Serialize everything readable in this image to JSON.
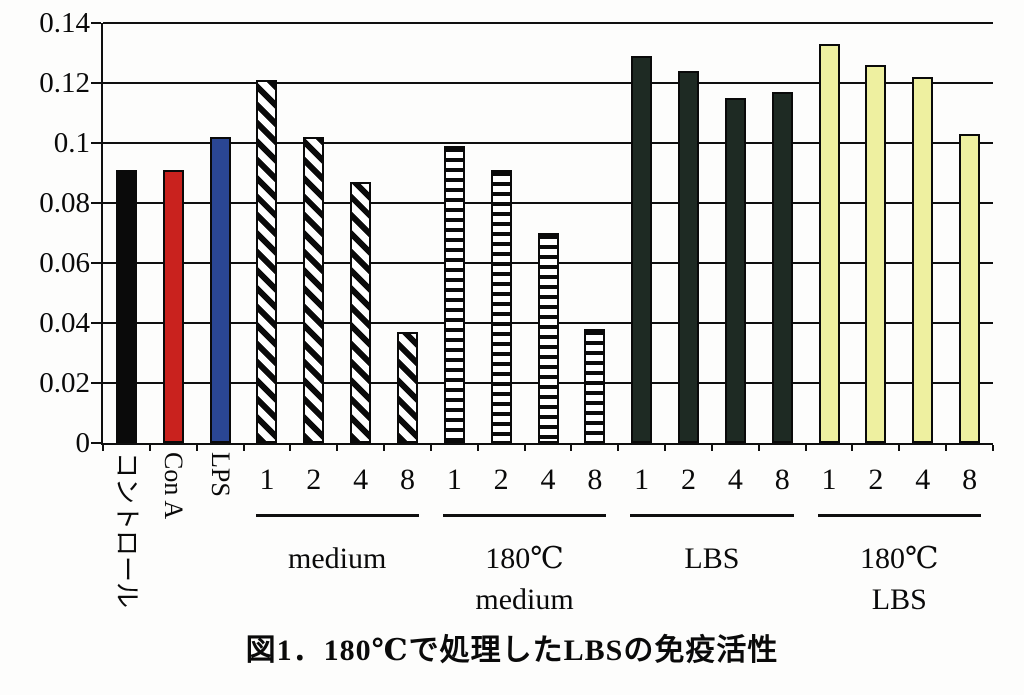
{
  "chart_data": {
    "type": "bar",
    "title": "図1．180℃で処理したLBSの免疫活性",
    "xlabel": "",
    "ylabel": "",
    "ylim": [
      0,
      0.14
    ],
    "grid": true,
    "legend": false,
    "yticks": [
      {
        "label": "0",
        "value": 0
      },
      {
        "label": "0.02",
        "value": 0.02
      },
      {
        "label": "0.04",
        "value": 0.04
      },
      {
        "label": "0.06",
        "value": 0.06
      },
      {
        "label": "0.08",
        "value": 0.08
      },
      {
        "label": "0.1",
        "value": 0.1
      },
      {
        "label": "0.12",
        "value": 0.12
      },
      {
        "label": "0.14",
        "value": 0.14
      }
    ],
    "bars": [
      {
        "label": "コントロール",
        "value": 0.091,
        "style": "solid",
        "color": "#0a0a0a",
        "label_rotation": "vertical"
      },
      {
        "label": "Con A",
        "value": 0.091,
        "style": "solid",
        "color": "#c9221e",
        "label_rotation": "vertical"
      },
      {
        "label": "LPS",
        "value": 0.102,
        "style": "solid",
        "color": "#2a4693",
        "label_rotation": "vertical"
      },
      {
        "label": "1",
        "value": 0.121,
        "style": "diag",
        "group": "medium"
      },
      {
        "label": "2",
        "value": 0.102,
        "style": "diag",
        "group": "medium"
      },
      {
        "label": "4",
        "value": 0.087,
        "style": "diag",
        "group": "medium"
      },
      {
        "label": "8",
        "value": 0.037,
        "style": "diag",
        "group": "medium"
      },
      {
        "label": "1",
        "value": 0.099,
        "style": "hstripe",
        "group": "180℃ medium"
      },
      {
        "label": "2",
        "value": 0.091,
        "style": "hstripe",
        "group": "180℃ medium"
      },
      {
        "label": "4",
        "value": 0.07,
        "style": "hstripe",
        "group": "180℃ medium"
      },
      {
        "label": "8",
        "value": 0.038,
        "style": "hstripe",
        "group": "180℃ medium"
      },
      {
        "label": "1",
        "value": 0.129,
        "style": "solid",
        "color": "#1e2a23",
        "group": "LBS"
      },
      {
        "label": "2",
        "value": 0.124,
        "style": "solid",
        "color": "#1e2a23",
        "group": "LBS"
      },
      {
        "label": "4",
        "value": 0.115,
        "style": "solid",
        "color": "#1e2a23",
        "group": "LBS"
      },
      {
        "label": "8",
        "value": 0.117,
        "style": "solid",
        "color": "#1e2a23",
        "group": "LBS"
      },
      {
        "label": "1",
        "value": 0.133,
        "style": "solid",
        "color": "#eef0a0",
        "group": "180℃ LBS"
      },
      {
        "label": "2",
        "value": 0.126,
        "style": "solid",
        "color": "#eef0a0",
        "group": "180℃ LBS"
      },
      {
        "label": "4",
        "value": 0.122,
        "style": "solid",
        "color": "#eef0a0",
        "group": "180℃ LBS"
      },
      {
        "label": "8",
        "value": 0.103,
        "style": "solid",
        "color": "#eef0a0",
        "group": "180℃ LBS"
      }
    ],
    "groups": [
      {
        "label_lines": [
          "medium"
        ],
        "start": 3,
        "end": 6
      },
      {
        "label_lines": [
          "180℃",
          "medium"
        ],
        "start": 7,
        "end": 10
      },
      {
        "label_lines": [
          "LBS"
        ],
        "start": 11,
        "end": 14
      },
      {
        "label_lines": [
          "180℃",
          "LBS"
        ],
        "start": 15,
        "end": 18
      }
    ],
    "colors": {
      "control": "#0a0a0a",
      "con_a": "#c9221e",
      "lps": "#2a4693",
      "lbs": "#1e2a23",
      "lbs_180": "#eef0a0",
      "axis": "#0f0f0f"
    }
  }
}
